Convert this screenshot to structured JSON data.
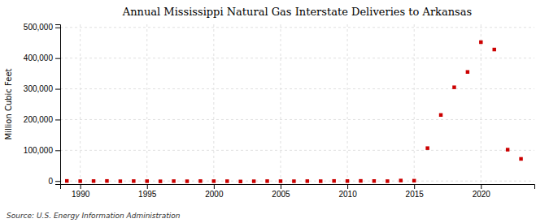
{
  "chart_data": {
    "type": "scatter",
    "title": "Annual Mississippi Natural Gas Interstate Deliveries to Arkansas",
    "y_label": "Million Cubic Feet",
    "source": "Source: U.S. Energy Information Administration",
    "color": "#cc0000",
    "marker": "square",
    "grid": true,
    "x": [
      1989,
      1990,
      1991,
      1992,
      1993,
      1994,
      1995,
      1996,
      1997,
      1998,
      1999,
      2000,
      2001,
      2002,
      2003,
      2004,
      2005,
      2006,
      2007,
      2008,
      2009,
      2010,
      2011,
      2012,
      2013,
      2014,
      2015,
      2016,
      2017,
      2018,
      2019,
      2020,
      2021,
      2022,
      2023
    ],
    "values": [
      200,
      -500,
      -200,
      100,
      -800,
      -300,
      -500,
      -1000,
      -400,
      -800,
      -300,
      -500,
      -600,
      -1500,
      -800,
      -400,
      -600,
      -700,
      -400,
      -600,
      100,
      -200,
      300,
      -100,
      -500,
      1500,
      1000,
      107000,
      215000,
      305000,
      355000,
      452000,
      428000,
      102000,
      72000
    ],
    "xlim": [
      1988.5,
      2024
    ],
    "xticks": [
      1990,
      1995,
      2000,
      2005,
      2010,
      2015,
      2020
    ],
    "ylim": [
      -10000,
      510000
    ],
    "yticks": [
      0,
      {
        "value": 100000,
        "label": "100,000"
      },
      {
        "value": 200000,
        "label": "200,000"
      },
      {
        "value": 300000,
        "label": "300,000"
      },
      {
        "value": 400000,
        "label": "400,000"
      },
      {
        "value": 500000,
        "label": "500,000"
      }
    ]
  }
}
